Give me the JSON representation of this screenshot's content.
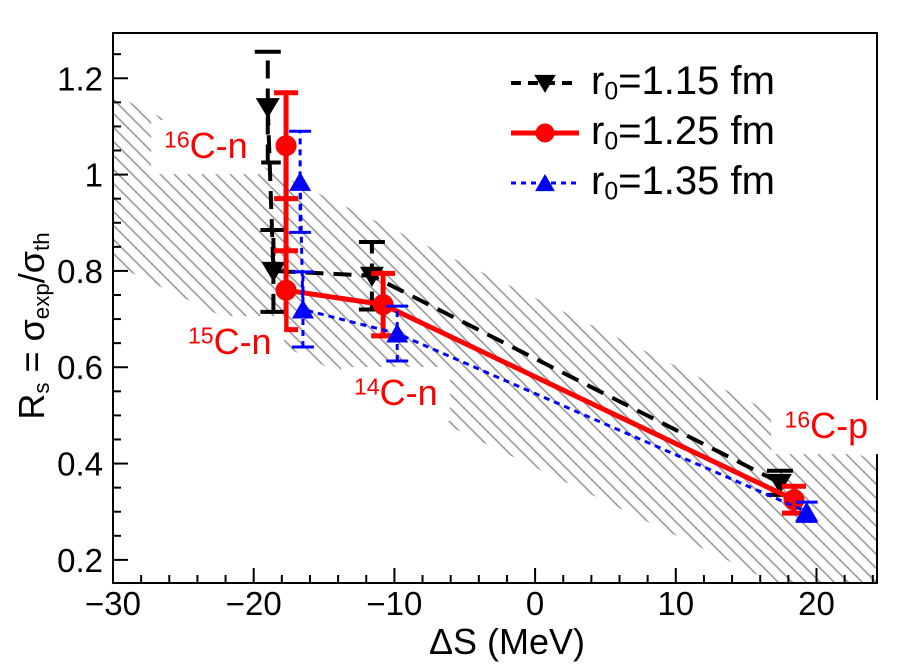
{
  "chart_data": {
    "type": "scatter",
    "title": "",
    "xlabel": "ΔS (MeV)",
    "ylabel": "Rs = σexp/σth",
    "xlim": [
      -30,
      24.3
    ],
    "ylim": [
      0.152,
      1.294
    ],
    "grid": false,
    "legend_position": "top-right",
    "x_ticks": {
      "values": [
        -30,
        -20,
        -10,
        0,
        10,
        20
      ],
      "labels": [
        "−30",
        "−20",
        "−10",
        "0",
        "10",
        "20"
      ],
      "minor_step": 2
    },
    "y_ticks": {
      "values": [
        0.2,
        0.4,
        0.6,
        0.8,
        1.0,
        1.2
      ],
      "labels": [
        "0.2",
        "0.4",
        "0.6",
        "0.8",
        "1",
        "1.2"
      ],
      "minor_step": 0.05
    },
    "series": [
      {
        "name": "r0=1.15 fm",
        "color": "#000000",
        "line_style": "dashed",
        "marker": "triangle-down",
        "points": [
          {
            "system": "16C-n",
            "x": -19.0,
            "y": 1.14,
            "ey": 0.115
          },
          {
            "system": "15C-n",
            "x": -18.6,
            "y": 0.8,
            "ey": 0.085
          },
          {
            "system": "14C-n",
            "x": -11.6,
            "y": 0.79,
            "ey": 0.07
          },
          {
            "system": "16C-p",
            "x": 17.4,
            "y": 0.36,
            "ey": 0.025
          }
        ]
      },
      {
        "name": "r0=1.25 fm",
        "color": "#ff0000",
        "line_style": "solid",
        "marker": "circle",
        "points": [
          {
            "system": "16C-n",
            "x": -17.7,
            "y": 1.06,
            "ey": 0.11
          },
          {
            "system": "15C-n",
            "x": -17.7,
            "y": 0.76,
            "ey": 0.082
          },
          {
            "system": "14C-n",
            "x": -10.8,
            "y": 0.73,
            "ey": 0.065
          },
          {
            "system": "16C-p",
            "x": 18.4,
            "y": 0.325,
            "ey": 0.028
          }
        ]
      },
      {
        "name": "r0=1.35 fm",
        "color": "#0000ff",
        "line_style": "dotted",
        "marker": "triangle-up",
        "points": [
          {
            "system": "16C-n",
            "x": -16.7,
            "y": 0.985,
            "ey": 0.105
          },
          {
            "system": "15C-n",
            "x": -16.5,
            "y": 0.72,
            "ey": 0.078
          },
          {
            "system": "14C-n",
            "x": -9.8,
            "y": 0.67,
            "ey": 0.057
          },
          {
            "system": "16C-p",
            "x": 19.3,
            "y": 0.3,
            "ey": 0.02
          }
        ]
      }
    ],
    "band": {
      "style": "hatched",
      "hatch_color": "#999999",
      "upper_edge": {
        "x": [
          -30,
          24.3
        ],
        "y": [
          1.167,
          0.401
        ]
      },
      "lower_edge": {
        "x": [
          -30,
          24.3
        ],
        "y": [
          0.815,
          0.049
        ]
      }
    },
    "annotations": [
      {
        "sup": "16",
        "text": "C-n",
        "x": -23.4,
        "y": 1.057,
        "color": "#ff0000"
      },
      {
        "sup": "15",
        "text": "C-n",
        "x": -21.7,
        "y": 0.65,
        "color": "#ff0000"
      },
      {
        "sup": "14",
        "text": "C-n",
        "x": -9.9,
        "y": 0.545,
        "color": "#ff0000"
      },
      {
        "sup": "16",
        "text": "C-p",
        "x": 20.7,
        "y": 0.476,
        "color": "#ff0000"
      }
    ]
  },
  "axes": {
    "x": {
      "title": "ΔS (MeV)"
    },
    "y": {
      "title": {
        "base1": "R",
        "sub1": "s",
        "base2": " = σ",
        "sub2": "exp",
        "base3": "/σ",
        "sub3": "th"
      }
    }
  },
  "legend": {
    "entries": [
      {
        "pre": "r",
        "sub": "0",
        "post": "=1.15 fm",
        "color": "#000000",
        "line_style": "dashed",
        "marker": "triangle-down"
      },
      {
        "pre": "r",
        "sub": "0",
        "post": "=1.25 fm",
        "color": "#ff0000",
        "line_style": "solid",
        "marker": "circle"
      },
      {
        "pre": "r",
        "sub": "0",
        "post": "=1.35 fm",
        "color": "#0000ff",
        "line_style": "dotted",
        "marker": "triangle-up"
      }
    ]
  }
}
